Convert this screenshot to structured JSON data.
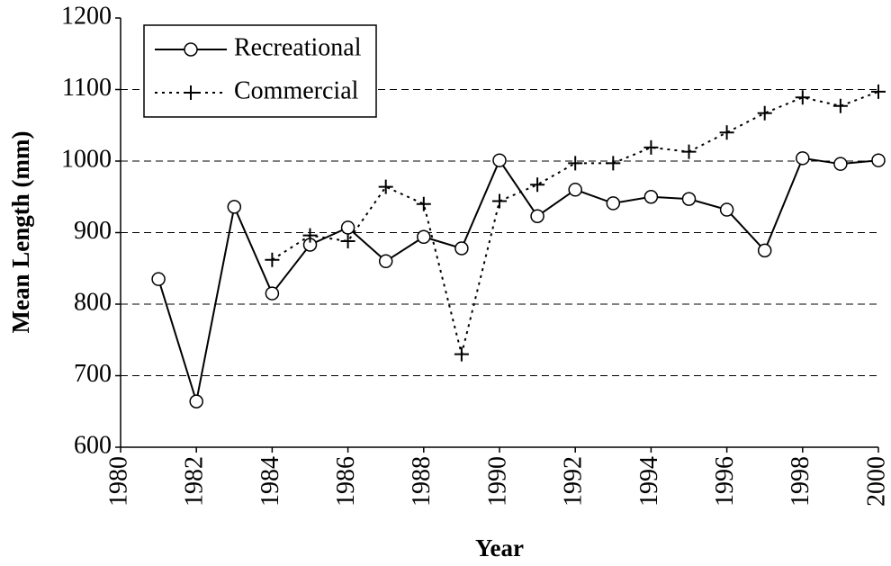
{
  "chart_data": {
    "type": "line",
    "x_label": "Year",
    "y_label": "Mean Length (mm)",
    "x": [
      1981,
      1982,
      1983,
      1984,
      1985,
      1986,
      1987,
      1988,
      1989,
      1990,
      1991,
      1992,
      1993,
      1994,
      1995,
      1996,
      1997,
      1998,
      1999,
      2000
    ],
    "series": [
      {
        "name": "Recreational",
        "color": "#000000",
        "marker": "circle",
        "dash": "solid",
        "values": [
          835,
          664,
          936,
          815,
          883,
          907,
          860,
          894,
          878,
          1001,
          923,
          960,
          941,
          950,
          947,
          932,
          875,
          1004,
          996,
          1001
        ]
      },
      {
        "name": "Commercial",
        "color": "#000000",
        "marker": "plus",
        "dash": "dotted",
        "values": [
          null,
          null,
          null,
          862,
          896,
          888,
          964,
          940,
          730,
          944,
          967,
          997,
          997,
          1019,
          1013,
          1040,
          1067,
          1089,
          1077,
          1097
        ]
      }
    ],
    "xlim": [
      1980,
      2000
    ],
    "xticks": [
      1980,
      1982,
      1984,
      1986,
      1988,
      1990,
      1992,
      1994,
      1996,
      1998,
      2000
    ],
    "ylim": [
      600,
      1200
    ],
    "yticks": [
      600,
      700,
      800,
      900,
      1000,
      1100,
      1200
    ],
    "grid": true,
    "legend": "top-left"
  }
}
